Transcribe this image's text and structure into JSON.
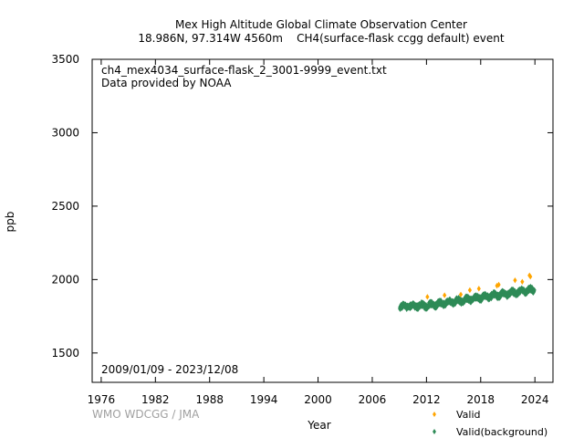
{
  "chart_data": {
    "type": "scatter",
    "title": "Mex High Altitude Global Climate Observation Center",
    "subtitle": "18.986N, 97.314W 4560m    CH4(surface-flask ccgg default) event",
    "xlabel": "Year",
    "ylabel": "ppb",
    "xlim": [
      1975,
      2026
    ],
    "ylim": [
      1300,
      3500
    ],
    "x_ticks": [
      "1976",
      "1982",
      "1988",
      "1994",
      "2000",
      "2006",
      "2012",
      "2018",
      "2024"
    ],
    "y_ticks": [
      "1500",
      "2000",
      "2500",
      "3000",
      "3500"
    ],
    "annotations": {
      "file": "ch4_mex4034_surface-flask_2_3001-9999_event.txt",
      "provider": "Data provided by NOAA",
      "date_range": "2009/01/09 - 2023/12/08"
    },
    "credit": "WMO WDCGG / JMA",
    "grid": false,
    "legend_position": "bottom-right",
    "series": [
      {
        "name": "Valid",
        "color": "#ffa500",
        "marker": "diamond",
        "points": [
          [
            2012.1,
            1882
          ],
          [
            2014.0,
            1893
          ],
          [
            2015.8,
            1898
          ],
          [
            2016.8,
            1928
          ],
          [
            2017.8,
            1938
          ],
          [
            2019.8,
            1958
          ],
          [
            2020.0,
            1965
          ],
          [
            2021.8,
            1995
          ],
          [
            2023.4,
            2028
          ],
          [
            2023.5,
            2020
          ],
          [
            2022.6,
            1985
          ]
        ]
      },
      {
        "name": "Valid(background)",
        "color": "#2e8b57",
        "marker": "diamond",
        "points": []
      }
    ]
  }
}
